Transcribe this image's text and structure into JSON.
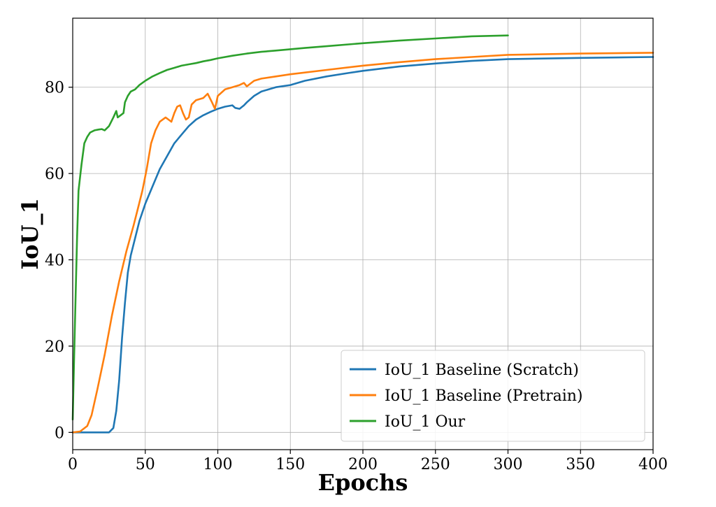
{
  "chart_data": {
    "type": "line",
    "title": "",
    "xlabel": "Epochs",
    "ylabel": "IoU_1",
    "xlim": [
      0,
      400
    ],
    "ylim": [
      -4,
      96
    ],
    "xticks": [
      0,
      50,
      100,
      150,
      200,
      250,
      300,
      350,
      400
    ],
    "yticks": [
      0,
      20,
      40,
      60,
      80
    ],
    "grid": true,
    "legend_position": "lower-right",
    "series": [
      {
        "name": "IoU_1 Baseline (Scratch)",
        "color": "#1f77b4",
        "points": [
          [
            0,
            0
          ],
          [
            10,
            0
          ],
          [
            20,
            0
          ],
          [
            25,
            0
          ],
          [
            28,
            1
          ],
          [
            30,
            5
          ],
          [
            32,
            12
          ],
          [
            34,
            22
          ],
          [
            36,
            30
          ],
          [
            38,
            37
          ],
          [
            40,
            41
          ],
          [
            43,
            45
          ],
          [
            46,
            49
          ],
          [
            50,
            53
          ],
          [
            55,
            57
          ],
          [
            60,
            61
          ],
          [
            65,
            64
          ],
          [
            70,
            67
          ],
          [
            75,
            69
          ],
          [
            80,
            71
          ],
          [
            85,
            72.5
          ],
          [
            90,
            73.5
          ],
          [
            95,
            74.3
          ],
          [
            100,
            75
          ],
          [
            105,
            75.5
          ],
          [
            110,
            75.8
          ],
          [
            112,
            75.2
          ],
          [
            115,
            75
          ],
          [
            118,
            75.8
          ],
          [
            120,
            76.5
          ],
          [
            125,
            78
          ],
          [
            130,
            79
          ],
          [
            140,
            80
          ],
          [
            150,
            80.5
          ],
          [
            160,
            81.5
          ],
          [
            175,
            82.5
          ],
          [
            190,
            83.3
          ],
          [
            200,
            83.8
          ],
          [
            225,
            84.8
          ],
          [
            250,
            85.5
          ],
          [
            275,
            86.1
          ],
          [
            300,
            86.5
          ],
          [
            350,
            86.8
          ],
          [
            400,
            87
          ]
        ]
      },
      {
        "name": "IoU_1 Baseline (Pretrain)",
        "color": "#ff7f0e",
        "points": [
          [
            0,
            0
          ],
          [
            5,
            0.2
          ],
          [
            10,
            1.5
          ],
          [
            13,
            4
          ],
          [
            17,
            10
          ],
          [
            22,
            18
          ],
          [
            27,
            27
          ],
          [
            32,
            35
          ],
          [
            37,
            42
          ],
          [
            42,
            48
          ],
          [
            45,
            52
          ],
          [
            48,
            56
          ],
          [
            51,
            61
          ],
          [
            54,
            67
          ],
          [
            57,
            70
          ],
          [
            60,
            72
          ],
          [
            64,
            73
          ],
          [
            66,
            72.5
          ],
          [
            68,
            72
          ],
          [
            70,
            74
          ],
          [
            72,
            75.5
          ],
          [
            74,
            75.8
          ],
          [
            76,
            74
          ],
          [
            78,
            72.5
          ],
          [
            80,
            73
          ],
          [
            82,
            76
          ],
          [
            85,
            77
          ],
          [
            90,
            77.5
          ],
          [
            93,
            78.5
          ],
          [
            96,
            76.5
          ],
          [
            98,
            75
          ],
          [
            100,
            78
          ],
          [
            105,
            79.5
          ],
          [
            110,
            80
          ],
          [
            115,
            80.5
          ],
          [
            118,
            81
          ],
          [
            120,
            80.2
          ],
          [
            125,
            81.5
          ],
          [
            130,
            82
          ],
          [
            140,
            82.5
          ],
          [
            150,
            83
          ],
          [
            175,
            84
          ],
          [
            200,
            85
          ],
          [
            225,
            85.8
          ],
          [
            250,
            86.5
          ],
          [
            275,
            87
          ],
          [
            300,
            87.5
          ],
          [
            350,
            87.8
          ],
          [
            400,
            88
          ]
        ]
      },
      {
        "name": "IoU_1 Our",
        "color": "#2ca02c",
        "points": [
          [
            0,
            3
          ],
          [
            1,
            18
          ],
          [
            2,
            32
          ],
          [
            3,
            45
          ],
          [
            4,
            56
          ],
          [
            6,
            62
          ],
          [
            8,
            67
          ],
          [
            10,
            68.5
          ],
          [
            12,
            69.5
          ],
          [
            15,
            70
          ],
          [
            18,
            70.2
          ],
          [
            20,
            70.3
          ],
          [
            22,
            70
          ],
          [
            25,
            71
          ],
          [
            28,
            73
          ],
          [
            30,
            74.5
          ],
          [
            31,
            73
          ],
          [
            33,
            73.5
          ],
          [
            35,
            74
          ],
          [
            36,
            76.5
          ],
          [
            38,
            78
          ],
          [
            40,
            79
          ],
          [
            43,
            79.5
          ],
          [
            46,
            80.5
          ],
          [
            50,
            81.5
          ],
          [
            55,
            82.5
          ],
          [
            60,
            83.3
          ],
          [
            65,
            84
          ],
          [
            70,
            84.5
          ],
          [
            75,
            85
          ],
          [
            80,
            85.3
          ],
          [
            85,
            85.6
          ],
          [
            90,
            86
          ],
          [
            95,
            86.3
          ],
          [
            100,
            86.7
          ],
          [
            110,
            87.3
          ],
          [
            120,
            87.8
          ],
          [
            130,
            88.2
          ],
          [
            140,
            88.5
          ],
          [
            150,
            88.8
          ],
          [
            160,
            89.1
          ],
          [
            175,
            89.5
          ],
          [
            200,
            90.2
          ],
          [
            225,
            90.8
          ],
          [
            250,
            91.3
          ],
          [
            275,
            91.8
          ],
          [
            300,
            92
          ]
        ]
      }
    ]
  }
}
